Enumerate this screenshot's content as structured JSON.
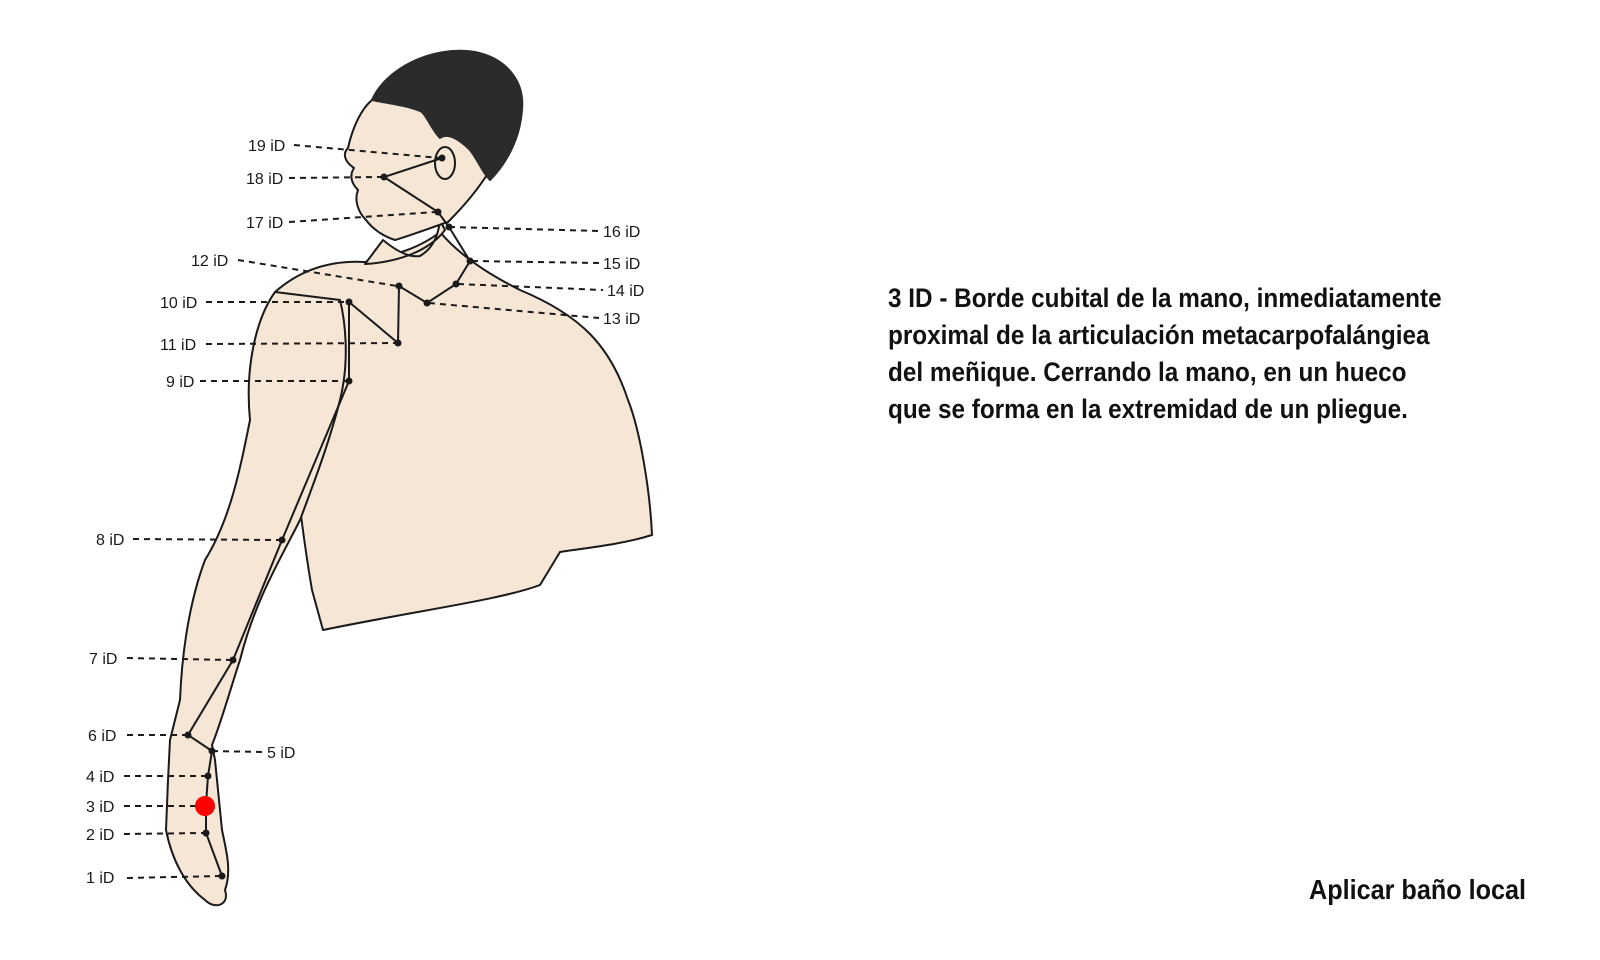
{
  "points": [
    {
      "label": "1 iD"
    },
    {
      "label": "2 iD"
    },
    {
      "label": "3 iD"
    },
    {
      "label": "4 iD"
    },
    {
      "label": "5 iD"
    },
    {
      "label": "6 iD"
    },
    {
      "label": "7 iD"
    },
    {
      "label": "8 iD"
    },
    {
      "label": "9 iD"
    },
    {
      "label": "10 iD"
    },
    {
      "label": "11 iD"
    },
    {
      "label": "12 iD"
    },
    {
      "label": "13 iD"
    },
    {
      "label": "14 iD"
    },
    {
      "label": "15 iD"
    },
    {
      "label": "16 iD"
    },
    {
      "label": "17 iD"
    },
    {
      "label": "18 iD"
    },
    {
      "label": "19 iD"
    }
  ],
  "highlight": {
    "point": "3 iD",
    "color": "#ff0000"
  },
  "description": {
    "lines": [
      "3 ID - Borde cubital de la mano, inmediatamente",
      "proximal de la articulación metacarpofalángiea",
      "del meñique. Cerrando la mano, en un hueco",
      "que se forma en la extremidad de un pliegue."
    ]
  },
  "instruction": "Aplicar baño local",
  "colors": {
    "skin": "#f5e6d6",
    "hair": "#2b2b2b",
    "line": "#1a1a1a",
    "marker": "#ff0000"
  }
}
